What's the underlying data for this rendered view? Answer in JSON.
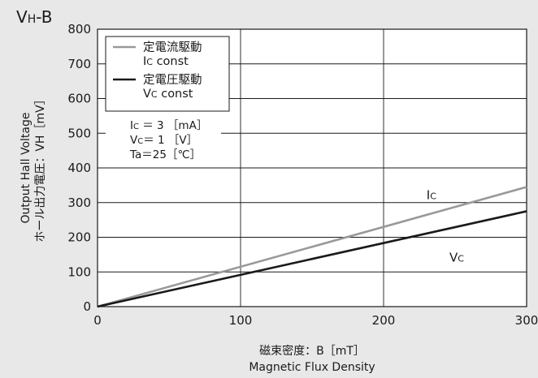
{
  "chart_data": {
    "type": "line",
    "title": {
      "main": "V",
      "sub": "H",
      "suffix": "-B"
    },
    "xlabel": {
      "line1": "磁束密度：B［mT］",
      "line2": "Magnetic Flux Density"
    },
    "ylabel": {
      "line1": "Output Hall Voltage",
      "line2": "ホール出力電圧：VH［mV］"
    },
    "xlim": [
      0,
      300
    ],
    "ylim": [
      0,
      800
    ],
    "x_ticks": [
      0,
      100,
      200,
      300
    ],
    "y_ticks": [
      0,
      100,
      200,
      300,
      400,
      500,
      600,
      700,
      800
    ],
    "x_tick_labels": [
      "0",
      "100",
      "200",
      "300"
    ],
    "y_tick_labels": [
      "0",
      "100",
      "200",
      "300",
      "400",
      "500",
      "600",
      "700",
      "800"
    ],
    "grid": true,
    "legend_position": "top-left",
    "series": [
      {
        "name": "定電流駆動",
        "legend_sub": {
          "main": "I",
          "sub": "C",
          "rest": " const"
        },
        "color": "#999999",
        "x": [
          0,
          300
        ],
        "y": [
          0,
          345
        ],
        "label": {
          "main": "I",
          "sub": "C"
        }
      },
      {
        "name": "定電圧駆動",
        "legend_sub": {
          "main": "V",
          "sub": "C",
          "rest": "  const"
        },
        "color": "#1a1a1a",
        "x": [
          0,
          300
        ],
        "y": [
          0,
          275
        ],
        "label": {
          "main": "V",
          "sub": "C"
        }
      }
    ],
    "conditions": [
      {
        "main": "I",
        "sub": "C",
        "rest": " ＝ 3 ［mA］"
      },
      {
        "main": "V",
        "sub": "C",
        "rest": "＝ 1 ［V］"
      },
      {
        "main": "Ta",
        "sub": "",
        "rest": "＝25［℃］"
      }
    ]
  }
}
